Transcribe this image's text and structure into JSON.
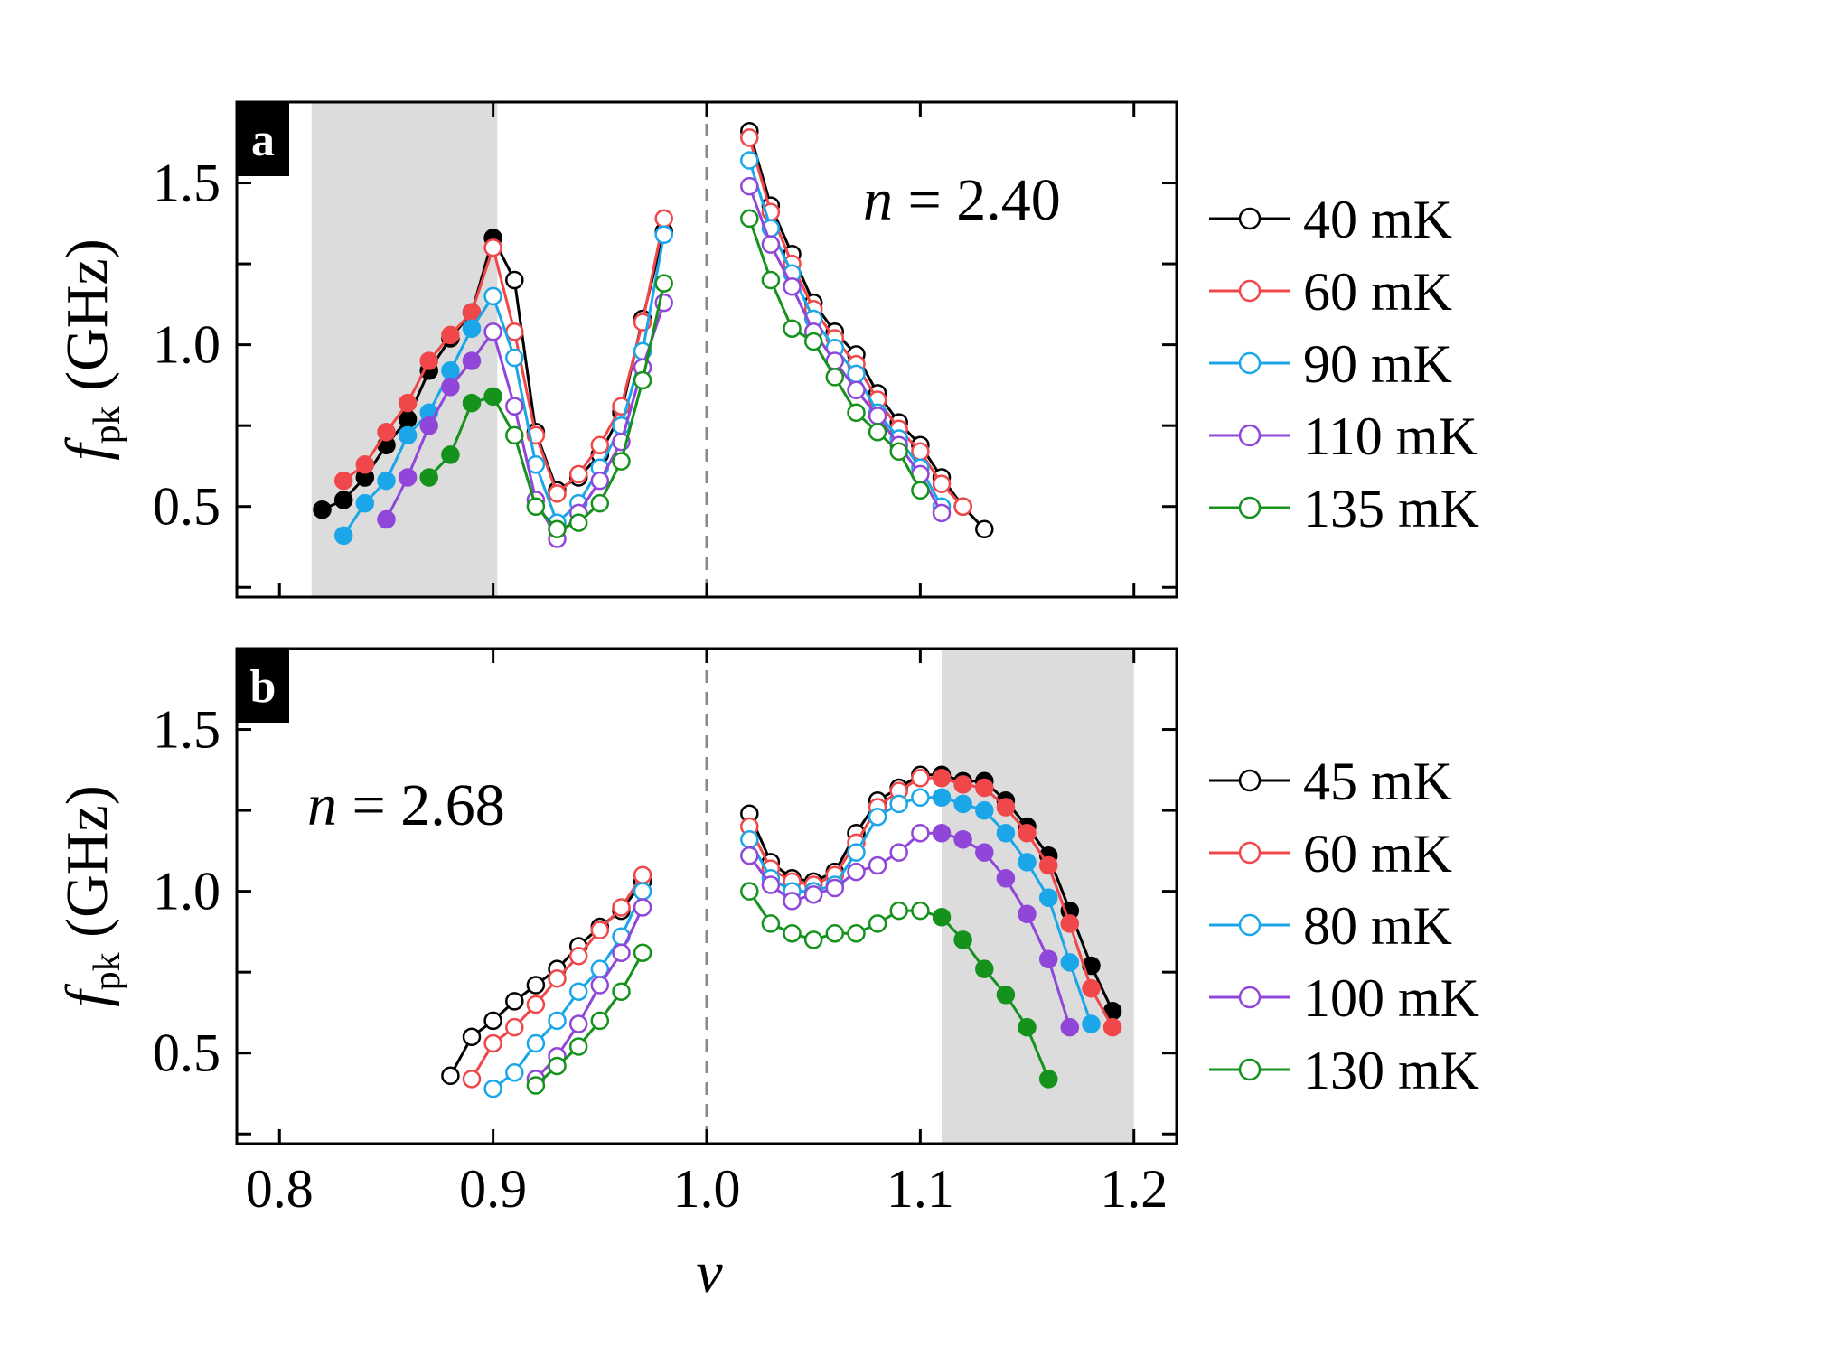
{
  "colors": {
    "black": "#000000",
    "red": "#f0474a",
    "blue": "#1aa6e8",
    "purple": "#9046d8",
    "green": "#15921c",
    "shade": "#dcdcdc",
    "divider": "#888888"
  },
  "chart_data": [
    {
      "type": "line",
      "panel": "a",
      "annotation": {
        "var": "n",
        "eq": " = ",
        "value": "2.40"
      },
      "xlabel": "ν",
      "ylabel": {
        "base": "f",
        "sub": "pk",
        "unit": " (GHz)"
      },
      "xlim": [
        0.78,
        1.22
      ],
      "ylim": [
        0.22,
        1.75
      ],
      "yticks": [
        0.5,
        1.0,
        1.5
      ],
      "ytick_labels": [
        "0.5",
        "1.0",
        "1.5"
      ],
      "xticks": [
        0.8,
        0.9,
        1.0,
        1.1,
        1.2
      ],
      "shaded_region": [
        0.815,
        0.902
      ],
      "divider_x": 1.0,
      "legend": [
        "40 mK",
        "60 mK",
        "90 mK",
        "110 mK",
        "135 mK"
      ],
      "series": [
        {
          "name": "40 mK",
          "color": "black",
          "filled_x": [
            0.82,
            0.83,
            0.84,
            0.85,
            0.86,
            0.87,
            0.88,
            0.89,
            0.9
          ],
          "segments": [
            {
              "x": [
                0.82,
                0.83,
                0.84,
                0.85,
                0.86,
                0.87,
                0.88,
                0.89,
                0.9,
                0.91,
                0.92,
                0.93,
                0.94,
                0.95,
                0.96,
                0.97,
                0.98
              ],
              "y": [
                0.49,
                0.52,
                0.59,
                0.69,
                0.77,
                0.92,
                1.02,
                1.1,
                1.33,
                1.2,
                0.73,
                0.55,
                0.59,
                0.66,
                0.79,
                1.08,
                1.35
              ]
            },
            {
              "x": [
                1.02,
                1.03,
                1.04,
                1.05,
                1.06,
                1.07,
                1.08,
                1.09,
                1.1,
                1.11,
                1.12,
                1.13
              ],
              "y": [
                1.66,
                1.43,
                1.28,
                1.13,
                1.04,
                0.97,
                0.85,
                0.76,
                0.69,
                0.59,
                0.5,
                0.43
              ]
            }
          ]
        },
        {
          "name": "60 mK",
          "color": "red",
          "filled_x": [
            0.83,
            0.84,
            0.85,
            0.86,
            0.87,
            0.88,
            0.89
          ],
          "segments": [
            {
              "x": [
                0.83,
                0.84,
                0.85,
                0.86,
                0.87,
                0.88,
                0.89,
                0.9,
                0.91,
                0.92,
                0.93,
                0.94,
                0.95,
                0.96,
                0.97,
                0.98
              ],
              "y": [
                0.58,
                0.63,
                0.73,
                0.82,
                0.95,
                1.03,
                1.1,
                1.3,
                1.04,
                0.72,
                0.54,
                0.6,
                0.69,
                0.81,
                1.07,
                1.39
              ]
            },
            {
              "x": [
                1.02,
                1.03,
                1.04,
                1.05,
                1.06,
                1.07,
                1.08,
                1.09,
                1.1,
                1.11,
                1.12
              ],
              "y": [
                1.64,
                1.41,
                1.25,
                1.11,
                1.02,
                0.94,
                0.83,
                0.74,
                0.67,
                0.57,
                0.5
              ]
            }
          ]
        },
        {
          "name": "90 mK",
          "color": "blue",
          "filled_x": [
            0.83,
            0.84,
            0.85,
            0.86,
            0.87,
            0.88,
            0.89
          ],
          "segments": [
            {
              "x": [
                0.83,
                0.84,
                0.85,
                0.86,
                0.87,
                0.88,
                0.89,
                0.9,
                0.91,
                0.92,
                0.93,
                0.94,
                0.95,
                0.96,
                0.97,
                0.98
              ],
              "y": [
                0.41,
                0.51,
                0.58,
                0.72,
                0.79,
                0.92,
                1.05,
                1.15,
                0.96,
                0.63,
                0.45,
                0.51,
                0.62,
                0.75,
                0.98,
                1.34
              ]
            },
            {
              "x": [
                1.02,
                1.03,
                1.04,
                1.05,
                1.06,
                1.07,
                1.08,
                1.09,
                1.1,
                1.11
              ],
              "y": [
                1.57,
                1.36,
                1.22,
                1.08,
                0.99,
                0.91,
                0.79,
                0.71,
                0.62,
                0.5
              ]
            }
          ]
        },
        {
          "name": "110 mK",
          "color": "purple",
          "filled_x": [
            0.85,
            0.86,
            0.87,
            0.88,
            0.89
          ],
          "segments": [
            {
              "x": [
                0.85,
                0.86,
                0.87,
                0.88,
                0.89,
                0.9,
                0.91,
                0.92,
                0.93,
                0.94,
                0.95,
                0.96,
                0.97,
                0.98
              ],
              "y": [
                0.46,
                0.59,
                0.75,
                0.87,
                0.95,
                1.04,
                0.81,
                0.52,
                0.4,
                0.48,
                0.58,
                0.7,
                0.93,
                1.13
              ]
            },
            {
              "x": [
                1.02,
                1.03,
                1.04,
                1.05,
                1.06,
                1.07,
                1.08,
                1.09,
                1.1,
                1.11
              ],
              "y": [
                1.49,
                1.31,
                1.18,
                1.04,
                0.95,
                0.86,
                0.78,
                0.69,
                0.6,
                0.48
              ]
            }
          ]
        },
        {
          "name": "135 mK",
          "color": "green",
          "filled_x": [
            0.87,
            0.88,
            0.89,
            0.9
          ],
          "segments": [
            {
              "x": [
                0.87,
                0.88,
                0.89,
                0.9,
                0.91,
                0.92,
                0.93,
                0.94,
                0.95,
                0.96,
                0.97,
                0.98
              ],
              "y": [
                0.59,
                0.66,
                0.82,
                0.84,
                0.72,
                0.5,
                0.43,
                0.45,
                0.51,
                0.64,
                0.89,
                1.19
              ]
            },
            {
              "x": [
                1.02,
                1.03,
                1.04,
                1.05,
                1.06,
                1.07,
                1.08,
                1.09,
                1.1
              ],
              "y": [
                1.39,
                1.2,
                1.05,
                1.01,
                0.9,
                0.79,
                0.73,
                0.67,
                0.55
              ]
            }
          ]
        }
      ]
    },
    {
      "type": "line",
      "panel": "b",
      "annotation": {
        "var": "n",
        "eq": " = ",
        "value": "2.68"
      },
      "xlabel": "ν",
      "ylabel": {
        "base": "f",
        "sub": "pk",
        "unit": " (GHz)"
      },
      "xlim": [
        0.78,
        1.22
      ],
      "ylim": [
        0.22,
        1.75
      ],
      "yticks": [
        0.5,
        1.0,
        1.5
      ],
      "ytick_labels": [
        "0.5",
        "1.0",
        "1.5"
      ],
      "xticks": [
        0.8,
        0.9,
        1.0,
        1.1,
        1.2
      ],
      "xtick_labels": [
        "0.8",
        "0.9",
        "1.0",
        "1.1",
        "1.2"
      ],
      "shaded_region": [
        1.11,
        1.2
      ],
      "divider_x": 1.0,
      "legend": [
        "45 mK",
        "60 mK",
        "80 mK",
        "100 mK",
        "130 mK"
      ],
      "series": [
        {
          "name": "45 mK",
          "color": "black",
          "filled_x": [
            1.11,
            1.12,
            1.13,
            1.14,
            1.15,
            1.16,
            1.17,
            1.18,
            1.19
          ],
          "segments": [
            {
              "x": [
                0.88,
                0.89,
                0.9,
                0.91,
                0.92,
                0.93,
                0.94,
                0.95,
                0.96,
                0.97
              ],
              "y": [
                0.43,
                0.55,
                0.6,
                0.66,
                0.71,
                0.76,
                0.83,
                0.89,
                0.94,
                1.03
              ]
            },
            {
              "x": [
                1.02,
                1.03,
                1.04,
                1.05,
                1.06,
                1.07,
                1.08,
                1.09,
                1.1,
                1.11,
                1.12,
                1.13,
                1.14,
                1.15,
                1.16,
                1.17,
                1.18,
                1.19
              ],
              "y": [
                1.24,
                1.09,
                1.04,
                1.03,
                1.06,
                1.18,
                1.28,
                1.32,
                1.36,
                1.36,
                1.34,
                1.34,
                1.28,
                1.2,
                1.11,
                0.94,
                0.77,
                0.63
              ]
            }
          ]
        },
        {
          "name": "60 mK",
          "color": "red",
          "filled_x": [
            1.11,
            1.12,
            1.13,
            1.14,
            1.15,
            1.16,
            1.17,
            1.18,
            1.19
          ],
          "segments": [
            {
              "x": [
                0.89,
                0.9,
                0.91,
                0.92,
                0.93,
                0.94,
                0.95,
                0.96,
                0.97
              ],
              "y": [
                0.42,
                0.53,
                0.58,
                0.65,
                0.73,
                0.8,
                0.88,
                0.95,
                1.05
              ]
            },
            {
              "x": [
                1.02,
                1.03,
                1.04,
                1.05,
                1.06,
                1.07,
                1.08,
                1.09,
                1.1,
                1.11,
                1.12,
                1.13,
                1.14,
                1.15,
                1.16,
                1.17,
                1.18,
                1.19
              ],
              "y": [
                1.2,
                1.07,
                1.03,
                1.02,
                1.05,
                1.15,
                1.26,
                1.31,
                1.35,
                1.35,
                1.33,
                1.32,
                1.26,
                1.18,
                1.08,
                0.9,
                0.7,
                0.58
              ]
            }
          ]
        },
        {
          "name": "80 mK",
          "color": "blue",
          "filled_x": [
            1.11,
            1.12,
            1.13,
            1.14,
            1.15,
            1.16,
            1.17,
            1.18
          ],
          "segments": [
            {
              "x": [
                0.9,
                0.91,
                0.92,
                0.93,
                0.94,
                0.95,
                0.96,
                0.97
              ],
              "y": [
                0.39,
                0.44,
                0.53,
                0.6,
                0.69,
                0.76,
                0.86,
                1.0
              ]
            },
            {
              "x": [
                1.02,
                1.03,
                1.04,
                1.05,
                1.06,
                1.07,
                1.08,
                1.09,
                1.1,
                1.11,
                1.12,
                1.13,
                1.14,
                1.15,
                1.16,
                1.17,
                1.18
              ],
              "y": [
                1.16,
                1.04,
                1.0,
                1.0,
                1.02,
                1.12,
                1.23,
                1.27,
                1.29,
                1.29,
                1.27,
                1.25,
                1.18,
                1.09,
                0.98,
                0.78,
                0.59
              ]
            }
          ]
        },
        {
          "name": "100 mK",
          "color": "purple",
          "filled_x": [
            1.11,
            1.12,
            1.13,
            1.14,
            1.15,
            1.16,
            1.17
          ],
          "segments": [
            {
              "x": [
                0.92,
                0.93,
                0.94,
                0.95,
                0.96,
                0.97
              ],
              "y": [
                0.42,
                0.49,
                0.59,
                0.71,
                0.81,
                0.95
              ]
            },
            {
              "x": [
                1.02,
                1.03,
                1.04,
                1.05,
                1.06,
                1.07,
                1.08,
                1.09,
                1.1,
                1.11,
                1.12,
                1.13,
                1.14,
                1.15,
                1.16,
                1.17
              ],
              "y": [
                1.11,
                1.02,
                0.97,
                0.99,
                1.01,
                1.06,
                1.08,
                1.12,
                1.18,
                1.18,
                1.16,
                1.12,
                1.04,
                0.93,
                0.79,
                0.58
              ]
            }
          ]
        },
        {
          "name": "130 mK",
          "color": "green",
          "filled_x": [
            1.11,
            1.12,
            1.13,
            1.14,
            1.15,
            1.16
          ],
          "segments": [
            {
              "x": [
                0.92,
                0.93,
                0.94,
                0.95,
                0.96,
                0.97
              ],
              "y": [
                0.4,
                0.46,
                0.52,
                0.6,
                0.69,
                0.81
              ]
            },
            {
              "x": [
                1.02,
                1.03,
                1.04,
                1.05,
                1.06,
                1.07,
                1.08,
                1.09,
                1.1,
                1.11,
                1.12,
                1.13,
                1.14,
                1.15,
                1.16
              ],
              "y": [
                1.0,
                0.9,
                0.87,
                0.85,
                0.87,
                0.87,
                0.9,
                0.94,
                0.94,
                0.92,
                0.85,
                0.76,
                0.68,
                0.58,
                0.42
              ]
            }
          ]
        }
      ]
    }
  ]
}
